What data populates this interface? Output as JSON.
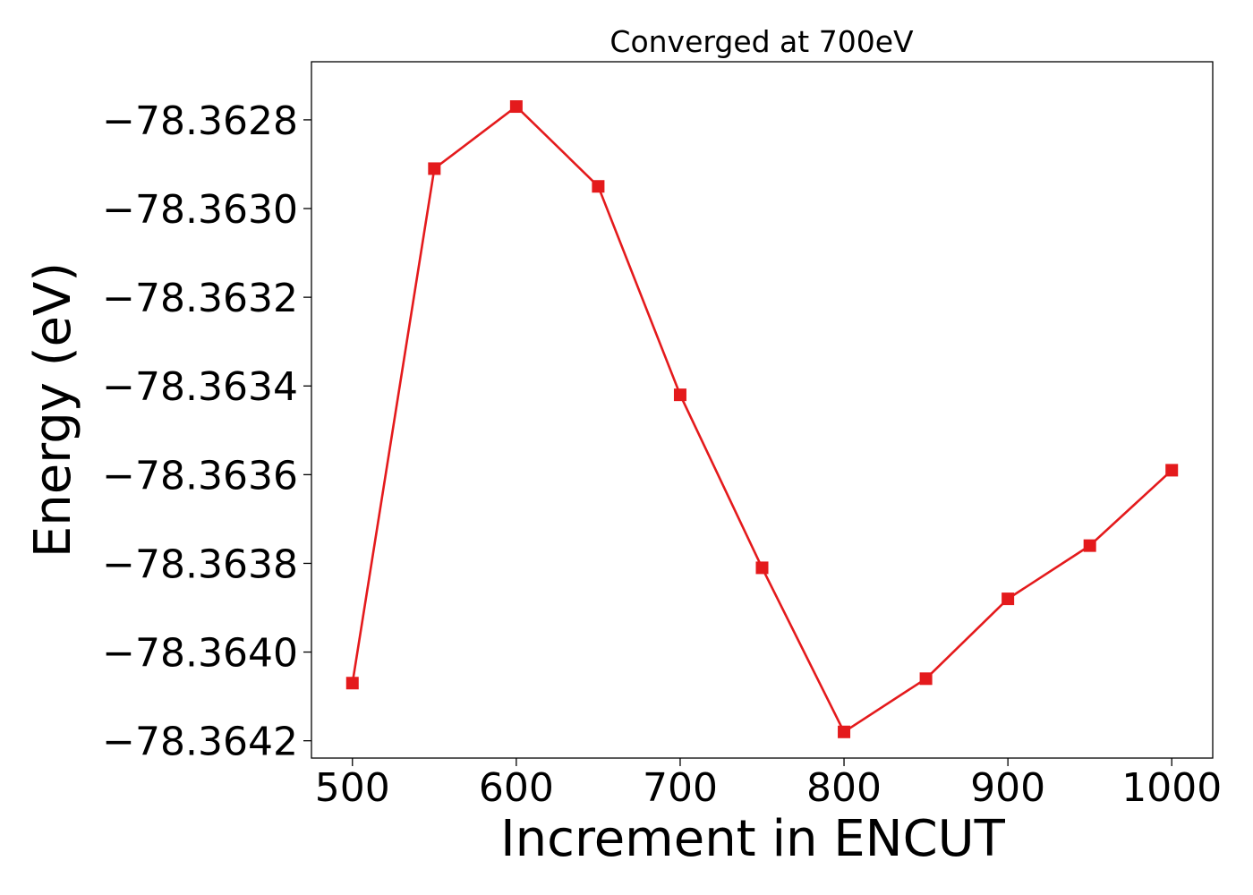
{
  "chart_data": {
    "type": "line",
    "title": "Converged at 700eV",
    "xlabel": "Increment in ENCUT",
    "ylabel": "Energy (eV)",
    "x": [
      500,
      550,
      600,
      650,
      700,
      750,
      800,
      850,
      900,
      950,
      1000
    ],
    "series": [
      {
        "values": [
          -78.36407,
          -78.36291,
          -78.36277,
          -78.36295,
          -78.36342,
          -78.36381,
          -78.36418,
          -78.36406,
          -78.36388,
          -78.36376,
          -78.36359
        ],
        "color": "#e41a1c",
        "marker": "square"
      }
    ],
    "xlim": [
      475,
      1025
    ],
    "ylim": [
      -78.364239,
      -78.362669
    ],
    "xticks": [
      500,
      600,
      700,
      800,
      900,
      1000
    ],
    "xtick_labels": [
      "500",
      "600",
      "700",
      "800",
      "900",
      "1000"
    ],
    "yticks": [
      -78.3628,
      -78.363,
      -78.3632,
      -78.3634,
      -78.3636,
      -78.3638,
      -78.364,
      -78.3642
    ],
    "ytick_labels": [
      "−78.3628",
      "−78.3630",
      "−78.3632",
      "−78.3634",
      "−78.3636",
      "−78.3638",
      "−78.3640",
      "−78.3642"
    ],
    "grid": false,
    "legend": "none"
  }
}
